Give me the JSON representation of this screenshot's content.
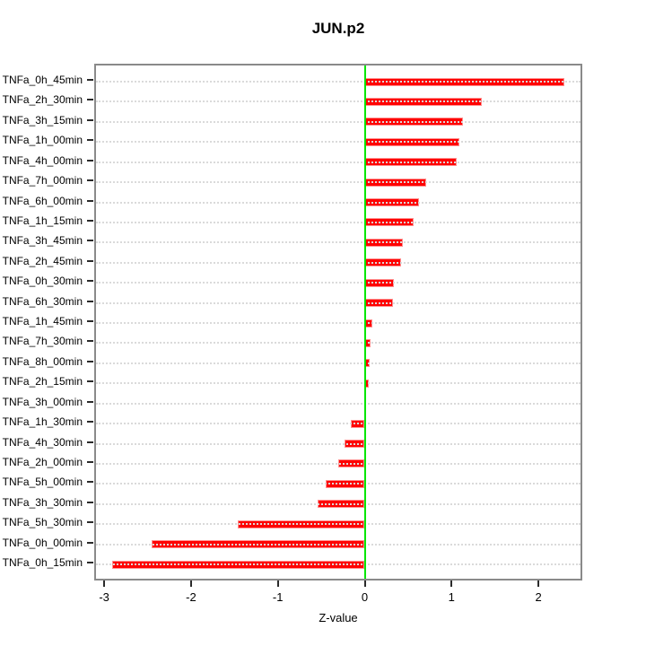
{
  "chart_data": {
    "type": "bar",
    "orientation": "horizontal",
    "title": "JUN.p2",
    "xlabel": "Z-value",
    "ylabel": "",
    "categories": [
      "TNFa_0h_45min",
      "TNFa_2h_30min",
      "TNFa_3h_15min",
      "TNFa_1h_00min",
      "TNFa_4h_00min",
      "TNFa_7h_00min",
      "TNFa_6h_00min",
      "TNFa_1h_15min",
      "TNFa_3h_45min",
      "TNFa_2h_45min",
      "TNFa_0h_30min",
      "TNFa_6h_30min",
      "TNFa_1h_45min",
      "TNFa_7h_30min",
      "TNFa_8h_00min",
      "TNFa_2h_15min",
      "TNFa_3h_00min",
      "TNFa_1h_30min",
      "TNFa_4h_30min",
      "TNFa_2h_00min",
      "TNFa_5h_00min",
      "TNFa_3h_30min",
      "TNFa_5h_30min",
      "TNFa_0h_00min",
      "TNFa_0h_15min"
    ],
    "values": [
      2.3,
      1.35,
      1.13,
      1.09,
      1.06,
      0.71,
      0.63,
      0.56,
      0.44,
      0.42,
      0.34,
      0.33,
      0.09,
      0.07,
      0.06,
      0.05,
      0.0,
      -0.16,
      -0.23,
      -0.3,
      -0.45,
      -0.54,
      -1.46,
      -2.45,
      -2.91
    ],
    "xlim": [
      -3.12,
      2.5
    ],
    "xticks": [
      "-3",
      "-2",
      "-1",
      "0",
      "1",
      "2"
    ],
    "grid": "horizontal dotted per category",
    "legend": "none",
    "colors": {
      "bar": "#ff0000",
      "bar_edge": "#ff8f8f",
      "zero_line": "#00e600",
      "box": "#8a8a8a",
      "gridline": "#dadada",
      "text": "#000000"
    }
  }
}
